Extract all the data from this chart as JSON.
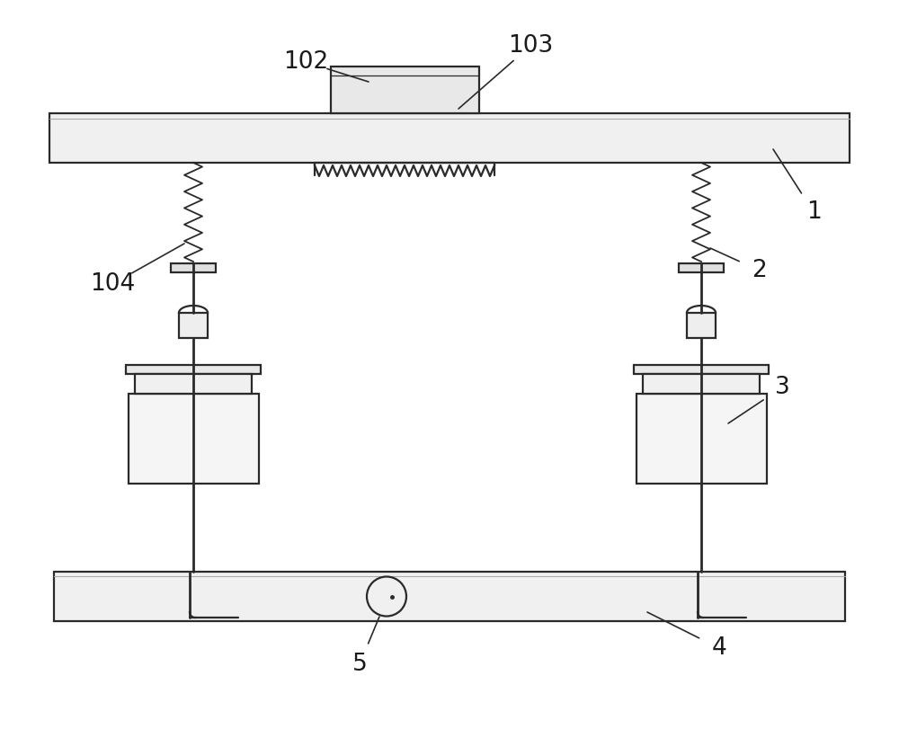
{
  "bg_color": "#ffffff",
  "line_color": "#2a2a2a",
  "fill_light": "#f0f0f0",
  "fill_mid": "#e0e0e0",
  "label_color": "#1a1a1a",
  "label_fontsize": 19,
  "lw_main": 1.6,
  "lw_rod": 2.0
}
